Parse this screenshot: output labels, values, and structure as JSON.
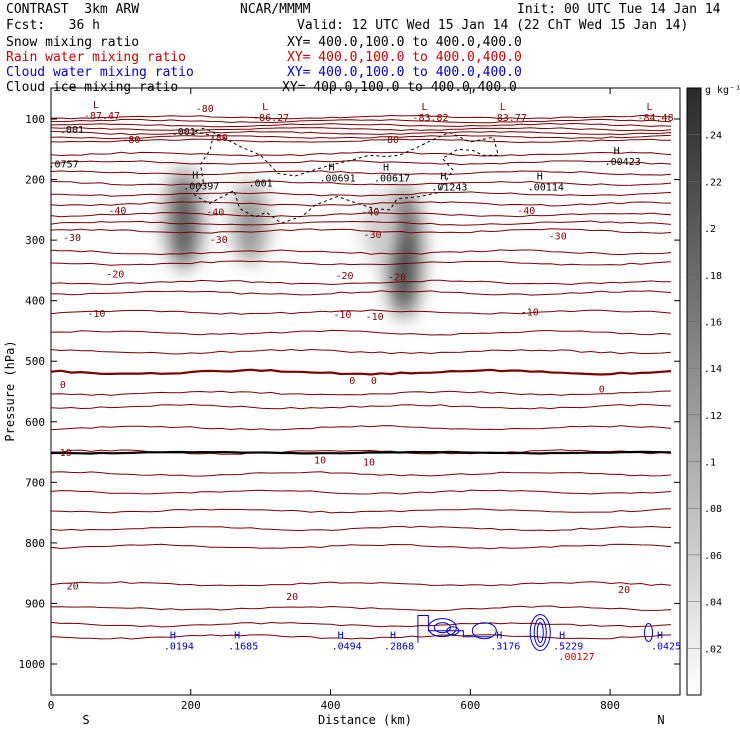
{
  "header": {
    "project": "CONTRAST  3km ARW",
    "source": "NCAR/MMMM",
    "init": "Init: 00 UTC Tue 14 Jan 14",
    "fcst": "Fcst:   36 h",
    "valid": "Valid: 12 UTC Wed 15 Jan 14 (22 ChT Wed 15 Jan 14)",
    "fields": [
      {
        "label": "Snow mixing ratio",
        "xy": "XY= 400.0,100.0 to 400.0,400.0",
        "color": "#000000"
      },
      {
        "label": "Rain water mixing ratio",
        "xy": "XY= 400.0,100.0 to 400.0,400.0",
        "color": "#cc0000"
      },
      {
        "label": "Cloud water mixing ratio",
        "xy": "XY= 400.0,100.0 to 400.0,400.0",
        "color": "#0000cc"
      },
      {
        "label": "Cloud ice mixing ratio",
        "xy": "XY= 400.0,100.0 to 400.0,400.0",
        "color": "#000000"
      }
    ]
  },
  "chart_data": {
    "type": "heatmap",
    "xlabel": "Distance (km)",
    "ylabel": "Pressure (hPa)",
    "xlim": [
      0,
      900
    ],
    "ylim": [
      1050,
      50
    ],
    "xticks": [
      0,
      200,
      400,
      600,
      800
    ],
    "yticks": [
      100,
      200,
      300,
      400,
      500,
      600,
      700,
      800,
      900,
      1000
    ],
    "x_end_labels": {
      "left": "S",
      "right": "N"
    },
    "colorbar": {
      "unit": "g kg⁻¹",
      "ticks": [
        ".24",
        ".22",
        ".2",
        ".18",
        ".16",
        ".14",
        ".12",
        ".1",
        ".08",
        ".06",
        ".04",
        ".02"
      ],
      "range": [
        0,
        0.26
      ]
    },
    "snow_plumes": [
      {
        "x": 190,
        "p_top": 180,
        "p_bottom": 350,
        "intensity": 0.85
      },
      {
        "x": 285,
        "p_top": 200,
        "p_bottom": 340,
        "intensity": 0.55
      },
      {
        "x": 505,
        "p_top": 210,
        "p_bottom": 430,
        "intensity": 0.95
      },
      {
        "x": 470,
        "p_top": 220,
        "p_bottom": 340,
        "intensity": 0.25
      }
    ],
    "isotherm_labels": [
      {
        "text": "-80",
        "x": 220,
        "p": 82
      },
      {
        "text": "-80",
        "x": 115,
        "p": 133
      },
      {
        "text": "-80",
        "x": 240,
        "p": 130
      },
      {
        "text": "-80",
        "x": 485,
        "p": 133
      },
      {
        "text": "-40",
        "x": 95,
        "p": 250
      },
      {
        "text": "-40",
        "x": 235,
        "p": 253
      },
      {
        "text": "-40",
        "x": 457,
        "p": 253
      },
      {
        "text": "-40",
        "x": 680,
        "p": 250
      },
      {
        "text": "-30",
        "x": 30,
        "p": 295
      },
      {
        "text": "-30",
        "x": 240,
        "p": 298
      },
      {
        "text": "-30",
        "x": 460,
        "p": 290
      },
      {
        "text": "-30",
        "x": 725,
        "p": 292
      },
      {
        "text": "-20",
        "x": 92,
        "p": 355
      },
      {
        "text": "-20",
        "x": 420,
        "p": 358
      },
      {
        "text": "-20",
        "x": 495,
        "p": 360
      },
      {
        "text": "-10",
        "x": 65,
        "p": 420
      },
      {
        "text": "-10",
        "x": 417,
        "p": 422
      },
      {
        "text": "-10",
        "x": 463,
        "p": 425
      },
      {
        "text": "-10",
        "x": 685,
        "p": 418
      },
      {
        "text": "0",
        "x": 17,
        "p": 538
      },
      {
        "text": "0",
        "x": 431,
        "p": 531
      },
      {
        "text": "0",
        "x": 462,
        "p": 531
      },
      {
        "text": "0",
        "x": 788,
        "p": 545
      },
      {
        "text": "10",
        "x": 21,
        "p": 650
      },
      {
        "text": "10",
        "x": 385,
        "p": 662
      },
      {
        "text": "10",
        "x": 455,
        "p": 666
      },
      {
        "text": "20",
        "x": 31,
        "p": 870
      },
      {
        "text": "20",
        "x": 345,
        "p": 888
      },
      {
        "text": "20",
        "x": 820,
        "p": 876
      }
    ],
    "extrema_labels": [
      {
        "mark": "L",
        "value": "-87.47",
        "x": 73,
        "p": 92,
        "color": "#800000"
      },
      {
        "mark": "L",
        "value": "-86.27",
        "x": 315,
        "p": 95,
        "color": "#800000"
      },
      {
        "mark": "L",
        "value": "-83.82",
        "x": 543,
        "p": 95,
        "color": "#800000"
      },
      {
        "mark": "L",
        "value": "-83.77",
        "x": 655,
        "p": 95,
        "color": "#800000"
      },
      {
        "mark": "L",
        "value": "-84.48",
        "x": 865,
        "p": 95,
        "color": "#800000"
      },
      {
        "mark": "",
        "value": ".001",
        "x": 30,
        "p": 115,
        "color": "#000000"
      },
      {
        "mark": "",
        "value": ".001",
        "x": 190,
        "p": 118,
        "color": "#000000"
      },
      {
        "mark": "",
        "value": ".0757",
        "x": 18,
        "p": 172,
        "color": "#000000"
      },
      {
        "mark": "H",
        "value": ".00397",
        "x": 215,
        "p": 208,
        "color": "#000000"
      },
      {
        "mark": "",
        "value": ".001",
        "x": 300,
        "p": 203,
        "color": "#000000"
      },
      {
        "mark": "H",
        "value": ".00691",
        "x": 410,
        "p": 195,
        "color": "#000000"
      },
      {
        "mark": "H",
        "value": ".00617",
        "x": 488,
        "p": 195,
        "color": "#000000"
      },
      {
        "mark": "H",
        "value": ".01243",
        "x": 570,
        "p": 210,
        "color": "#000000"
      },
      {
        "mark": "H",
        "value": ".00114",
        "x": 708,
        "p": 210,
        "color": "#000000"
      },
      {
        "mark": "H",
        "value": ".00423",
        "x": 818,
        "p": 168,
        "color": "#000000"
      },
      {
        "mark": "H",
        "value": ".0194",
        "x": 183,
        "p": 968,
        "color": "#0000cc"
      },
      {
        "mark": "H",
        "value": ".1685",
        "x": 275,
        "p": 968,
        "color": "#0000cc"
      },
      {
        "mark": "H",
        "value": ".0494",
        "x": 423,
        "p": 968,
        "color": "#0000cc"
      },
      {
        "mark": "H",
        "value": ".2868",
        "x": 498,
        "p": 968,
        "color": "#0000cc"
      },
      {
        "mark": "H",
        "value": ".3176",
        "x": 650,
        "p": 968,
        "color": "#0000cc"
      },
      {
        "mark": "H",
        "value": ".5229",
        "x": 740,
        "p": 968,
        "color": "#0000cc"
      },
      {
        "mark": "",
        "value": ".00127",
        "x": 752,
        "p": 985,
        "color": "#cc0000"
      },
      {
        "mark": "H",
        "value": ".0425",
        "x": 880,
        "p": 968,
        "color": "#0000cc"
      }
    ]
  }
}
